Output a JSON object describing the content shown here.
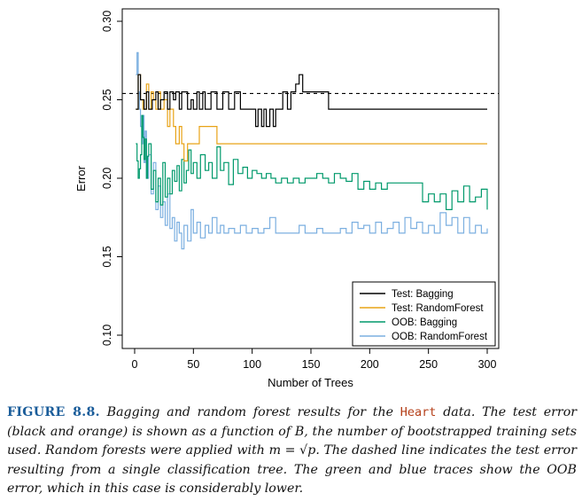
{
  "chart_data": {
    "type": "line",
    "xlabel": "Number of Trees",
    "ylabel": "Error",
    "xlim": [
      0,
      300
    ],
    "ylim": [
      0.1,
      0.3
    ],
    "xticks": [
      0,
      50,
      100,
      150,
      200,
      250,
      300
    ],
    "yticks": [
      "0.10",
      "0.15",
      "0.20",
      "0.25",
      "0.30"
    ],
    "reference_line": {
      "y": 0.254,
      "style": "dashed",
      "meaning": "single classification tree test error"
    },
    "legend_position": "bottom-right",
    "series": [
      {
        "name": "Test: Bagging",
        "color": "#000000",
        "x": [
          1,
          3,
          5,
          8,
          10,
          12,
          15,
          18,
          20,
          22,
          25,
          28,
          30,
          33,
          35,
          38,
          40,
          45,
          48,
          50,
          53,
          55,
          58,
          60,
          65,
          70,
          75,
          80,
          85,
          90,
          95,
          100,
          103,
          105,
          108,
          110,
          112,
          115,
          118,
          120,
          123,
          126,
          130,
          133,
          137,
          140,
          143,
          145,
          148,
          150,
          155,
          160,
          165,
          170,
          200,
          250,
          300
        ],
        "y": [
          0.244,
          0.266,
          0.25,
          0.244,
          0.255,
          0.244,
          0.25,
          0.255,
          0.244,
          0.25,
          0.255,
          0.244,
          0.255,
          0.25,
          0.255,
          0.244,
          0.255,
          0.244,
          0.25,
          0.244,
          0.255,
          0.244,
          0.255,
          0.244,
          0.255,
          0.244,
          0.255,
          0.244,
          0.255,
          0.244,
          0.244,
          0.244,
          0.233,
          0.244,
          0.233,
          0.244,
          0.233,
          0.244,
          0.233,
          0.244,
          0.244,
          0.255,
          0.244,
          0.255,
          0.26,
          0.266,
          0.255,
          0.255,
          0.255,
          0.255,
          0.255,
          0.255,
          0.244,
          0.244,
          0.244,
          0.244,
          0.244
        ]
      },
      {
        "name": "Test: RandomForest",
        "color": "#e8a317",
        "x": [
          1,
          3,
          5,
          7,
          10,
          12,
          14,
          16,
          18,
          20,
          22,
          25,
          28,
          30,
          33,
          35,
          38,
          40,
          42,
          45,
          48,
          50,
          55,
          60,
          65,
          70,
          75,
          100,
          200,
          300
        ],
        "y": [
          0.244,
          0.266,
          0.25,
          0.244,
          0.26,
          0.244,
          0.255,
          0.25,
          0.244,
          0.255,
          0.244,
          0.25,
          0.233,
          0.244,
          0.233,
          0.222,
          0.233,
          0.222,
          0.211,
          0.222,
          0.222,
          0.222,
          0.233,
          0.233,
          0.233,
          0.222,
          0.222,
          0.222,
          0.222,
          0.222
        ]
      },
      {
        "name": "OOB: Bagging",
        "color": "#00996b",
        "x": [
          1,
          2,
          3,
          4,
          5,
          6,
          7,
          8,
          9,
          10,
          11,
          12,
          14,
          16,
          18,
          20,
          22,
          24,
          26,
          28,
          30,
          32,
          34,
          36,
          38,
          40,
          42,
          44,
          46,
          48,
          50,
          53,
          56,
          60,
          63,
          66,
          70,
          73,
          76,
          80,
          84,
          88,
          92,
          96,
          100,
          104,
          108,
          112,
          116,
          120,
          125,
          130,
          135,
          140,
          145,
          150,
          155,
          160,
          165,
          170,
          175,
          180,
          185,
          190,
          195,
          200,
          205,
          210,
          215,
          220,
          225,
          230,
          235,
          240,
          245,
          250,
          255,
          260,
          265,
          270,
          275,
          280,
          285,
          290,
          295,
          300
        ],
        "y": [
          0.222,
          0.211,
          0.2,
          0.206,
          0.215,
          0.24,
          0.226,
          0.212,
          0.225,
          0.2,
          0.214,
          0.222,
          0.193,
          0.205,
          0.185,
          0.2,
          0.183,
          0.21,
          0.188,
          0.2,
          0.19,
          0.205,
          0.198,
          0.208,
          0.192,
          0.212,
          0.197,
          0.205,
          0.218,
          0.203,
          0.21,
          0.2,
          0.215,
          0.205,
          0.21,
          0.2,
          0.22,
          0.205,
          0.21,
          0.196,
          0.212,
          0.203,
          0.207,
          0.2,
          0.205,
          0.203,
          0.2,
          0.203,
          0.2,
          0.197,
          0.2,
          0.197,
          0.2,
          0.197,
          0.2,
          0.2,
          0.203,
          0.2,
          0.197,
          0.203,
          0.2,
          0.198,
          0.203,
          0.193,
          0.198,
          0.193,
          0.197,
          0.193,
          0.197,
          0.197,
          0.197,
          0.197,
          0.197,
          0.197,
          0.185,
          0.19,
          0.185,
          0.19,
          0.18,
          0.192,
          0.185,
          0.195,
          0.185,
          0.188,
          0.193,
          0.18
        ]
      },
      {
        "name": "OOB: RandomForest",
        "color": "#7bafe0",
        "x": [
          1,
          2,
          3,
          4,
          5,
          6,
          7,
          8,
          9,
          10,
          12,
          14,
          16,
          18,
          20,
          22,
          24,
          26,
          28,
          30,
          32,
          34,
          36,
          38,
          40,
          42,
          45,
          48,
          50,
          53,
          56,
          60,
          63,
          66,
          70,
          73,
          76,
          80,
          85,
          90,
          95,
          100,
          105,
          110,
          115,
          120,
          125,
          130,
          135,
          140,
          145,
          150,
          155,
          160,
          165,
          170,
          175,
          180,
          185,
          190,
          195,
          200,
          205,
          210,
          215,
          220,
          225,
          230,
          235,
          240,
          245,
          250,
          255,
          260,
          265,
          270,
          275,
          280,
          285,
          290,
          295,
          300
        ],
        "y": [
          0.266,
          0.28,
          0.255,
          0.244,
          0.233,
          0.222,
          0.24,
          0.21,
          0.23,
          0.2,
          0.215,
          0.19,
          0.21,
          0.18,
          0.195,
          0.175,
          0.185,
          0.17,
          0.19,
          0.168,
          0.175,
          0.16,
          0.172,
          0.165,
          0.155,
          0.17,
          0.16,
          0.18,
          0.165,
          0.172,
          0.162,
          0.17,
          0.165,
          0.175,
          0.165,
          0.17,
          0.165,
          0.168,
          0.165,
          0.17,
          0.165,
          0.168,
          0.165,
          0.168,
          0.175,
          0.165,
          0.165,
          0.165,
          0.165,
          0.17,
          0.165,
          0.165,
          0.168,
          0.165,
          0.165,
          0.165,
          0.168,
          0.165,
          0.172,
          0.168,
          0.17,
          0.165,
          0.172,
          0.165,
          0.168,
          0.172,
          0.165,
          0.175,
          0.168,
          0.172,
          0.165,
          0.17,
          0.165,
          0.178,
          0.17,
          0.175,
          0.165,
          0.175,
          0.165,
          0.17,
          0.165,
          0.168
        ]
      }
    ]
  },
  "caption": {
    "label": "FIGURE 8.8.",
    "text_1": "Bagging and random forest results for the",
    "code": "Heart",
    "text_2": "data. The test error (black and orange) is shown as a function of",
    "b_symbol": "B",
    "text_3": ", the number of bootstrapped training sets used. Random forests were applied with",
    "formula": "m = √p",
    "text_4": ". The dashed line indicates the test error resulting from a single classification tree. The green and blue traces show the OOB error, which in this case is considerably lower."
  }
}
